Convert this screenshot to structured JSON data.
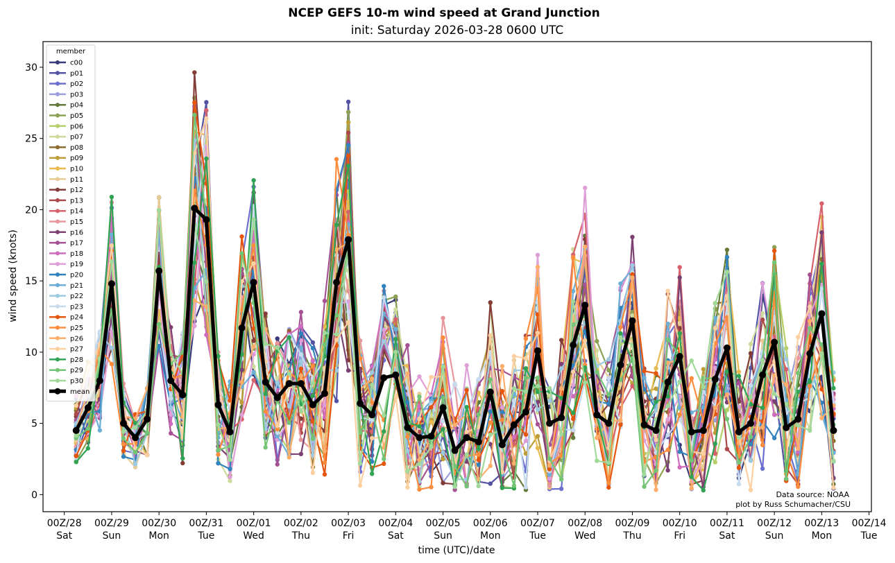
{
  "chart_data": {
    "type": "line",
    "title": "NCEP GEFS 10-m wind speed at Grand Junction",
    "subtitle": "init: Saturday 2026-03-28 0600 UTC",
    "xlabel": "time (UTC)/date",
    "ylabel": "wind speed (knots)",
    "ylim": [
      -1.2,
      31.8
    ],
    "yticks": [
      0,
      5,
      10,
      15,
      20,
      25,
      30
    ],
    "xlim_days": [
      -0.45,
      17.05
    ],
    "xticks": [
      {
        "day": 0,
        "top": "00Z/28",
        "bottom": "Sat"
      },
      {
        "day": 1,
        "top": "00Z/29",
        "bottom": "Sun"
      },
      {
        "day": 2,
        "top": "00Z/30",
        "bottom": "Mon"
      },
      {
        "day": 3,
        "top": "00Z/31",
        "bottom": "Tue"
      },
      {
        "day": 4,
        "top": "00Z/01",
        "bottom": "Wed"
      },
      {
        "day": 5,
        "top": "00Z/02",
        "bottom": "Thu"
      },
      {
        "day": 6,
        "top": "00Z/03",
        "bottom": "Fri"
      },
      {
        "day": 7,
        "top": "00Z/04",
        "bottom": "Sat"
      },
      {
        "day": 8,
        "top": "00Z/05",
        "bottom": "Sun"
      },
      {
        "day": 9,
        "top": "00Z/06",
        "bottom": "Mon"
      },
      {
        "day": 10,
        "top": "00Z/07",
        "bottom": "Tue"
      },
      {
        "day": 11,
        "top": "00Z/08",
        "bottom": "Wed"
      },
      {
        "day": 12,
        "top": "00Z/09",
        "bottom": "Thu"
      },
      {
        "day": 13,
        "top": "00Z/10",
        "bottom": "Fri"
      },
      {
        "day": 14,
        "top": "00Z/11",
        "bottom": "Sat"
      },
      {
        "day": 15,
        "top": "00Z/12",
        "bottom": "Sun"
      },
      {
        "day": 16,
        "top": "00Z/13",
        "bottom": "Mon"
      },
      {
        "day": 17,
        "top": "00Z/14",
        "bottom": "Tue"
      }
    ],
    "time_start_day": 0.25,
    "time_step_hours": 6,
    "legend": {
      "title": "member",
      "placement": "upper-left"
    },
    "mean": {
      "name": "mean",
      "color": "#000000",
      "values": [
        4.5,
        6.1,
        8.0,
        14.8,
        5.0,
        4.0,
        5.3,
        15.7,
        8.0,
        7.0,
        20.1,
        19.3,
        6.3,
        4.4,
        11.7,
        14.9,
        7.9,
        6.8,
        7.8,
        7.8,
        6.3,
        7.1,
        14.9,
        17.9,
        6.4,
        5.6,
        8.2,
        8.4,
        4.7,
        4.0,
        4.1,
        6.1,
        3.1,
        4.0,
        3.7,
        7.2,
        3.5,
        4.9,
        5.8,
        10.1,
        5.0,
        5.4,
        10.5,
        13.3,
        5.6,
        5.0,
        9.1,
        12.2,
        4.9,
        4.5,
        7.9,
        9.7,
        4.4,
        4.5,
        8.1,
        10.3,
        4.4,
        5.0,
        8.4,
        10.7,
        4.7,
        5.3,
        9.9,
        12.7,
        4.5
      ]
    },
    "members": [
      {
        "name": "c00",
        "color": "#393b79"
      },
      {
        "name": "p01",
        "color": "#5254a3"
      },
      {
        "name": "p02",
        "color": "#6b6ecf"
      },
      {
        "name": "p03",
        "color": "#9c9ede"
      },
      {
        "name": "p04",
        "color": "#637939"
      },
      {
        "name": "p05",
        "color": "#8ca252"
      },
      {
        "name": "p06",
        "color": "#b5cf6b"
      },
      {
        "name": "p07",
        "color": "#cedb9c"
      },
      {
        "name": "p08",
        "color": "#8c6d31"
      },
      {
        "name": "p09",
        "color": "#bd9e39"
      },
      {
        "name": "p10",
        "color": "#e7ba52"
      },
      {
        "name": "p11",
        "color": "#e7cb94"
      },
      {
        "name": "p12",
        "color": "#843c39"
      },
      {
        "name": "p13",
        "color": "#ad494a"
      },
      {
        "name": "p14",
        "color": "#d6616b"
      },
      {
        "name": "p15",
        "color": "#e7969c"
      },
      {
        "name": "p16",
        "color": "#7b4173"
      },
      {
        "name": "p17",
        "color": "#a55194"
      },
      {
        "name": "p18",
        "color": "#ce6dbd"
      },
      {
        "name": "p19",
        "color": "#de9ed6"
      },
      {
        "name": "p20",
        "color": "#3182bd"
      },
      {
        "name": "p21",
        "color": "#6baed6"
      },
      {
        "name": "p22",
        "color": "#9ecae1"
      },
      {
        "name": "p23",
        "color": "#c6dbef"
      },
      {
        "name": "p24",
        "color": "#e6550d"
      },
      {
        "name": "p25",
        "color": "#fd8d3c"
      },
      {
        "name": "p26",
        "color": "#fdae6b"
      },
      {
        "name": "p27",
        "color": "#fdd0a2"
      },
      {
        "name": "p28",
        "color": "#31a354"
      },
      {
        "name": "p29",
        "color": "#74c476"
      },
      {
        "name": "p30",
        "color": "#a1d99b"
      }
    ],
    "annotations": [
      "Data source: NOAA",
      "plot by Russ Schumacher/CSU"
    ]
  }
}
